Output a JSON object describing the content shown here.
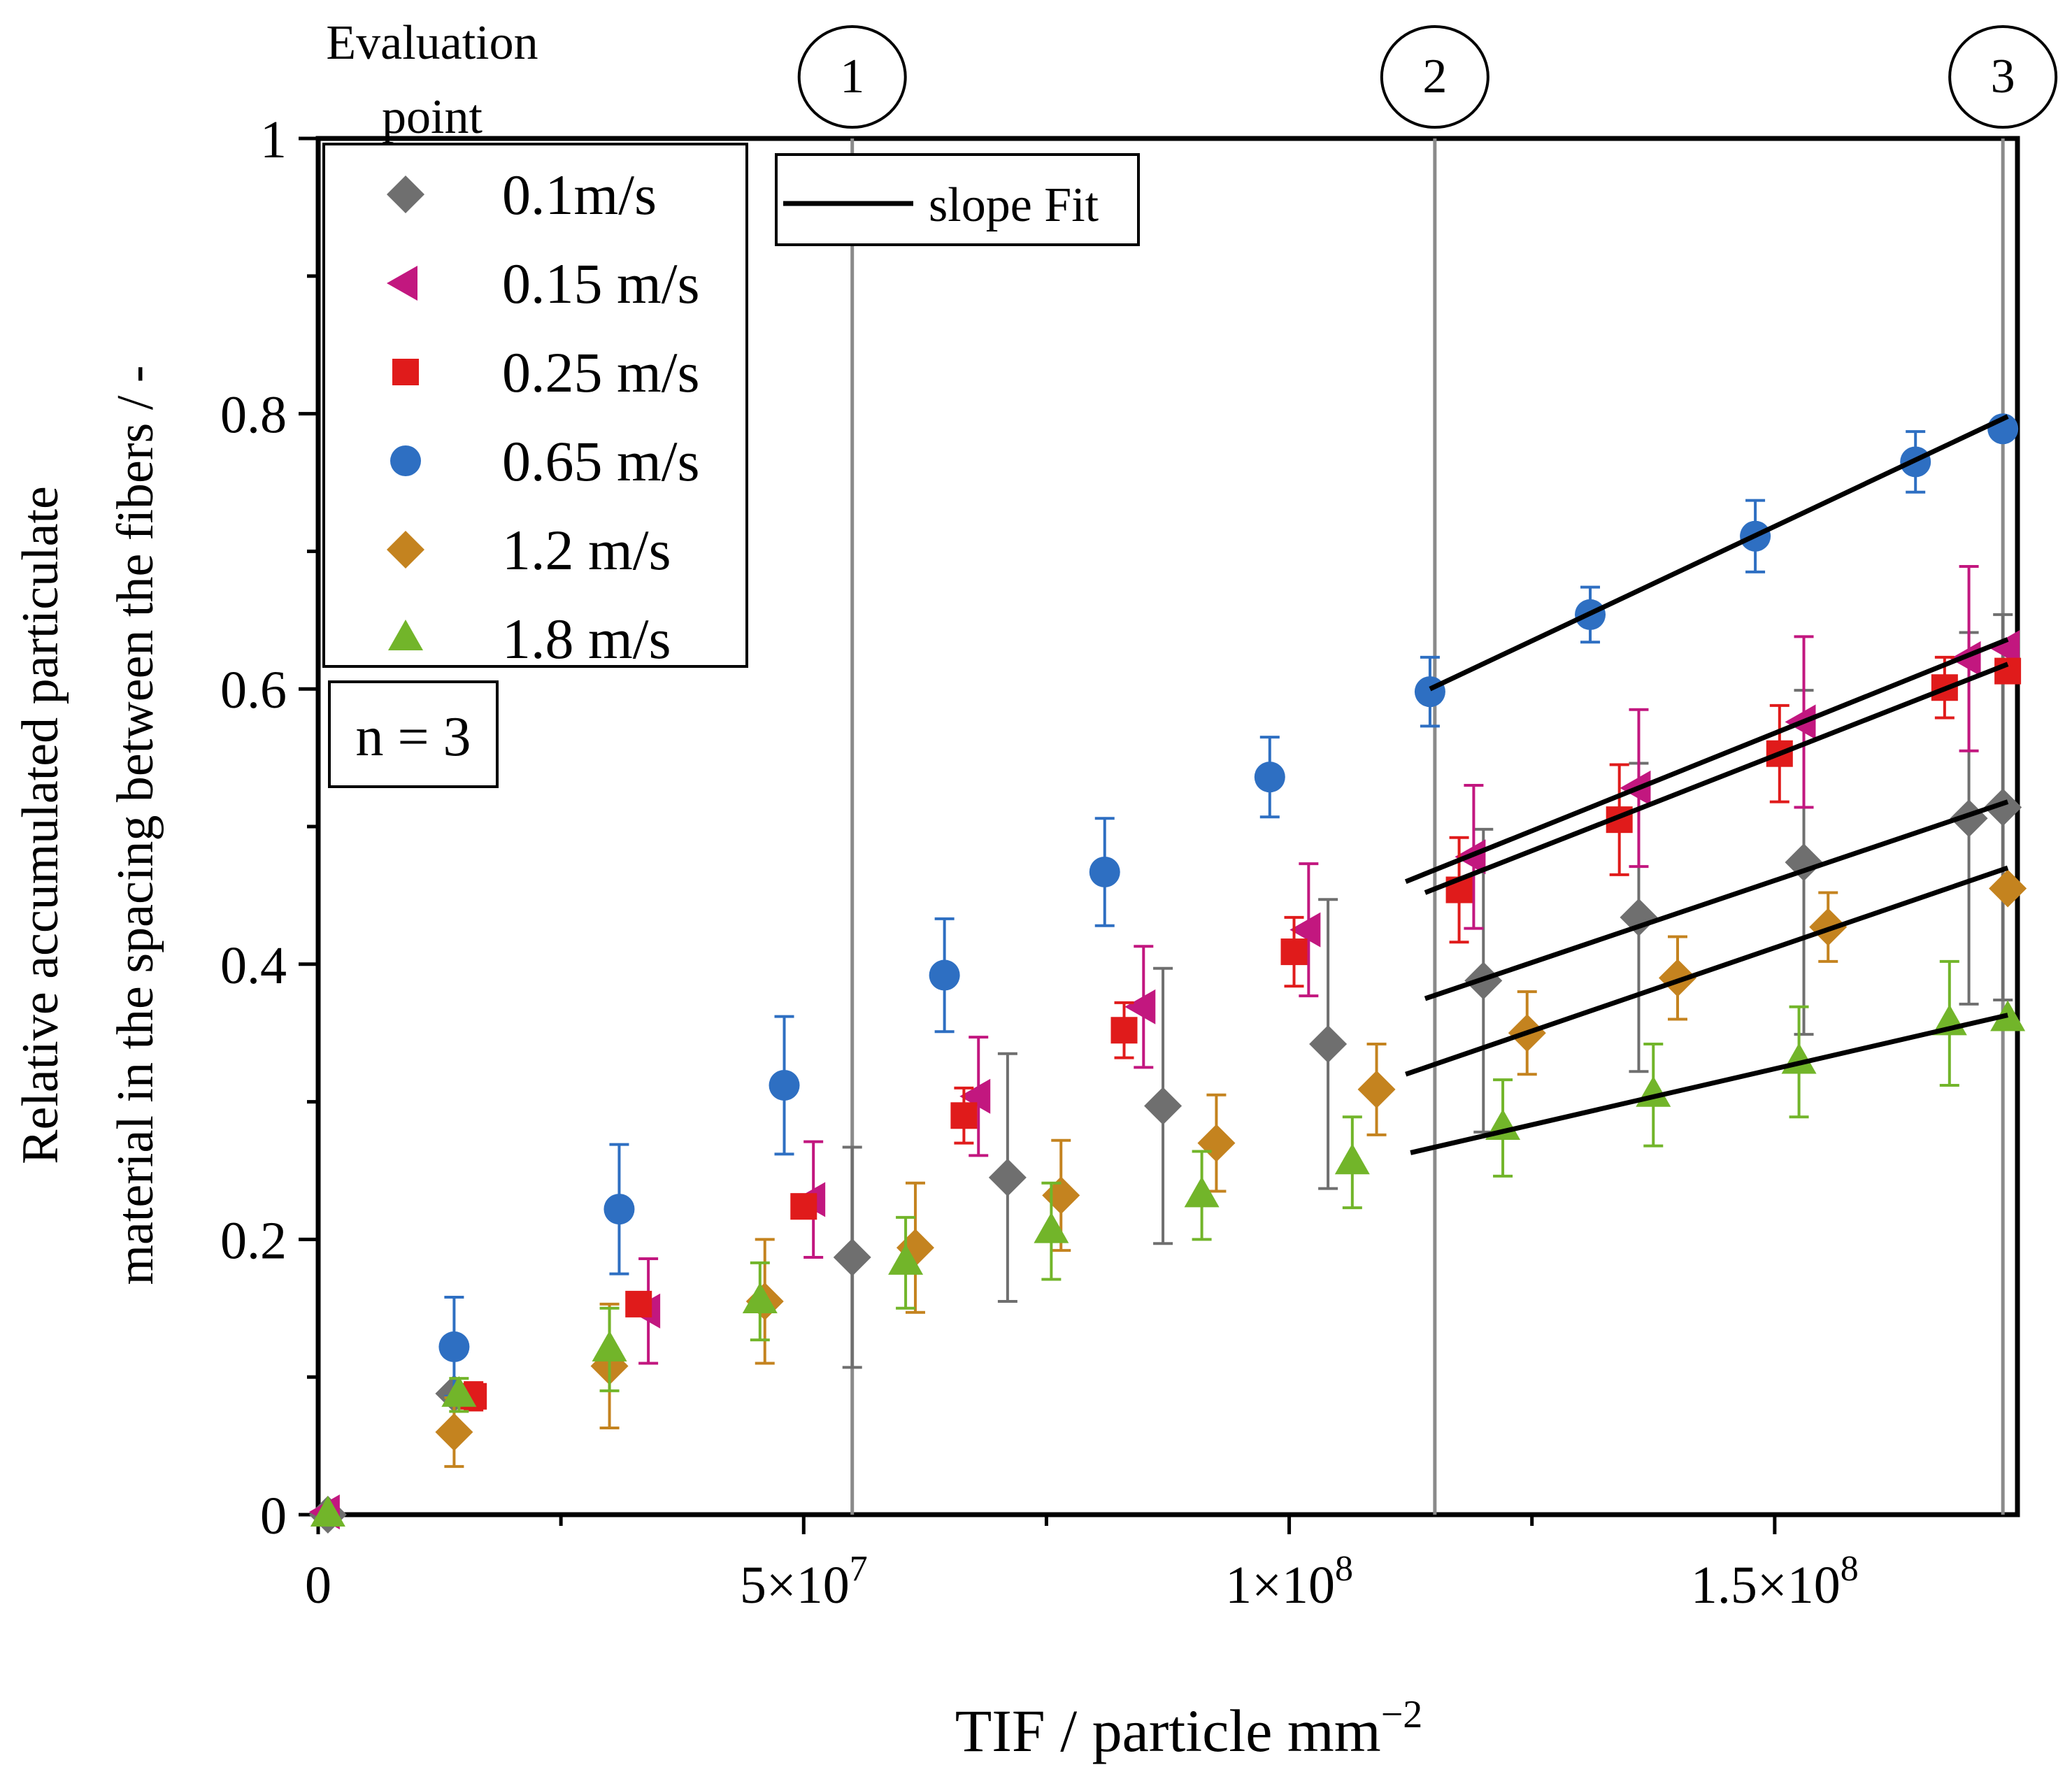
{
  "chart_data": {
    "type": "scatter",
    "xlabel": "TIF / particle  mm",
    "xlabel_exponent": "−2",
    "ylabel_line1": "Relative accumulated particulate",
    "ylabel_line2": "material in the spacing between the fibers / -",
    "xlim": [
      0,
      175000000
    ],
    "ylim": [
      0,
      1
    ],
    "x_ticks": [
      {
        "value": 0,
        "label": "0"
      },
      {
        "value": 50000000,
        "label": "5×10",
        "exp": "7"
      },
      {
        "value": 100000000,
        "label": "1×10",
        "exp": "8"
      },
      {
        "value": 150000000,
        "label": "1.5×10",
        "exp": "8"
      }
    ],
    "y_ticks": [
      {
        "value": 0,
        "label": "0"
      },
      {
        "value": 0.2,
        "label": "0.2"
      },
      {
        "value": 0.4,
        "label": "0.4"
      },
      {
        "value": 0.6,
        "label": "0.6"
      },
      {
        "value": 0.8,
        "label": "0.8"
      },
      {
        "value": 1,
        "label": "1"
      }
    ],
    "evaluation_label_line1": "Evaluation",
    "evaluation_label_line2": "point",
    "evaluation_points": [
      {
        "label": "1",
        "x": 55000000
      },
      {
        "label": "2",
        "x": 115000000
      },
      {
        "label": "3",
        "x": 173500000
      }
    ],
    "annotation_n": "n = 3",
    "fit_legend_label": "slope Fit",
    "series": [
      {
        "name": "0.1m/s",
        "marker": "diamond",
        "color": "#6f6f6f",
        "points": [
          {
            "x": 1000000,
            "y": 0.0,
            "err": 0.0
          },
          {
            "x": 14000000,
            "y": 0.088,
            "err": 0.0
          },
          {
            "x": 55000000,
            "y": 0.187,
            "err": 0.08
          },
          {
            "x": 71000000,
            "y": 0.245,
            "err": 0.09
          },
          {
            "x": 87000000,
            "y": 0.297,
            "err": 0.1
          },
          {
            "x": 104000000,
            "y": 0.342,
            "err": 0.105
          },
          {
            "x": 120000000,
            "y": 0.388,
            "err": 0.11
          },
          {
            "x": 136000000,
            "y": 0.434,
            "err": 0.112
          },
          {
            "x": 153000000,
            "y": 0.474,
            "err": 0.125
          },
          {
            "x": 170000000,
            "y": 0.506,
            "err": 0.135
          },
          {
            "x": 173500000,
            "y": 0.514,
            "err": 0.14
          }
        ],
        "fit": {
          "x0": 114000000,
          "y0": 0.375,
          "x1": 174000000,
          "y1": 0.518
        }
      },
      {
        "name": "0.15 m/s",
        "marker": "triangle-left",
        "color": "#c2177f",
        "points": [
          {
            "x": 1000000,
            "y": 0.002,
            "err": 0.0
          },
          {
            "x": 34000000,
            "y": 0.148,
            "err": 0.038
          },
          {
            "x": 51000000,
            "y": 0.229,
            "err": 0.042
          },
          {
            "x": 68000000,
            "y": 0.304,
            "err": 0.043
          },
          {
            "x": 85000000,
            "y": 0.369,
            "err": 0.044
          },
          {
            "x": 102000000,
            "y": 0.425,
            "err": 0.048
          },
          {
            "x": 119000000,
            "y": 0.478,
            "err": 0.052
          },
          {
            "x": 136000000,
            "y": 0.528,
            "err": 0.057
          },
          {
            "x": 153000000,
            "y": 0.576,
            "err": 0.062
          },
          {
            "x": 170000000,
            "y": 0.622,
            "err": 0.067
          },
          {
            "x": 174000000,
            "y": 0.63,
            "err": 0.0
          }
        ],
        "fit": {
          "x0": 112000000,
          "y0": 0.46,
          "x1": 174000000,
          "y1": 0.636
        }
      },
      {
        "name": "0.25 m/s",
        "marker": "square",
        "color": "#e01b1b",
        "points": [
          {
            "x": 16000000,
            "y": 0.086,
            "err": 0.01
          },
          {
            "x": 33000000,
            "y": 0.153,
            "err": 0.0
          },
          {
            "x": 50000000,
            "y": 0.224,
            "err": 0.0
          },
          {
            "x": 66500000,
            "y": 0.29,
            "err": 0.02
          },
          {
            "x": 83000000,
            "y": 0.352,
            "err": 0.02
          },
          {
            "x": 100500000,
            "y": 0.409,
            "err": 0.025
          },
          {
            "x": 117500000,
            "y": 0.454,
            "err": 0.038
          },
          {
            "x": 134000000,
            "y": 0.505,
            "err": 0.04
          },
          {
            "x": 150500000,
            "y": 0.553,
            "err": 0.035
          },
          {
            "x": 167500000,
            "y": 0.601,
            "err": 0.022
          },
          {
            "x": 174000000,
            "y": 0.613,
            "err": 0.0
          }
        ],
        "fit": {
          "x0": 114000000,
          "y0": 0.452,
          "x1": 174000000,
          "y1": 0.618
        }
      },
      {
        "name": "0.65 m/s",
        "marker": "circle",
        "color": "#2e6fc2",
        "points": [
          {
            "x": 14000000,
            "y": 0.122,
            "err": 0.036
          },
          {
            "x": 31000000,
            "y": 0.222,
            "err": 0.047
          },
          {
            "x": 48000000,
            "y": 0.312,
            "err": 0.05
          },
          {
            "x": 64500000,
            "y": 0.392,
            "err": 0.041
          },
          {
            "x": 81000000,
            "y": 0.467,
            "err": 0.039
          },
          {
            "x": 98000000,
            "y": 0.536,
            "err": 0.029
          },
          {
            "x": 114500000,
            "y": 0.598,
            "err": 0.025
          },
          {
            "x": 131000000,
            "y": 0.654,
            "err": 0.02
          },
          {
            "x": 148000000,
            "y": 0.711,
            "err": 0.026
          },
          {
            "x": 164500000,
            "y": 0.765,
            "err": 0.022
          },
          {
            "x": 173500000,
            "y": 0.789,
            "err": 0.0
          }
        ],
        "fit": {
          "x0": 114500000,
          "y0": 0.6,
          "x1": 174000000,
          "y1": 0.798
        }
      },
      {
        "name": "1.2 m/s",
        "marker": "diamond",
        "color": "#c4831f",
        "points": [
          {
            "x": 14000000,
            "y": 0.06,
            "err": 0.025
          },
          {
            "x": 30000000,
            "y": 0.108,
            "err": 0.045
          },
          {
            "x": 46000000,
            "y": 0.155,
            "err": 0.045
          },
          {
            "x": 61500000,
            "y": 0.194,
            "err": 0.047
          },
          {
            "x": 76500000,
            "y": 0.232,
            "err": 0.04
          },
          {
            "x": 92500000,
            "y": 0.27,
            "err": 0.035
          },
          {
            "x": 109000000,
            "y": 0.309,
            "err": 0.033
          },
          {
            "x": 124500000,
            "y": 0.35,
            "err": 0.03
          },
          {
            "x": 140000000,
            "y": 0.39,
            "err": 0.03
          },
          {
            "x": 155500000,
            "y": 0.427,
            "err": 0.025
          },
          {
            "x": 174000000,
            "y": 0.455,
            "err": 0.0
          }
        ],
        "fit": {
          "x0": 112000000,
          "y0": 0.32,
          "x1": 174000000,
          "y1": 0.47
        }
      },
      {
        "name": "1.8 m/s",
        "marker": "triangle-up",
        "color": "#72b52a",
        "points": [
          {
            "x": 1000000,
            "y": 0.0,
            "err": 0.0
          },
          {
            "x": 14500000,
            "y": 0.087,
            "err": 0.012
          },
          {
            "x": 30000000,
            "y": 0.12,
            "err": 0.03
          },
          {
            "x": 45500000,
            "y": 0.155,
            "err": 0.028
          },
          {
            "x": 60500000,
            "y": 0.183,
            "err": 0.033
          },
          {
            "x": 75500000,
            "y": 0.206,
            "err": 0.035
          },
          {
            "x": 91000000,
            "y": 0.232,
            "err": 0.032
          },
          {
            "x": 106500000,
            "y": 0.256,
            "err": 0.033
          },
          {
            "x": 122000000,
            "y": 0.281,
            "err": 0.035
          },
          {
            "x": 137500000,
            "y": 0.305,
            "err": 0.037
          },
          {
            "x": 152500000,
            "y": 0.329,
            "err": 0.04
          },
          {
            "x": 168000000,
            "y": 0.357,
            "err": 0.045
          },
          {
            "x": 174000000,
            "y": 0.36,
            "err": 0.0
          }
        ],
        "fit": {
          "x0": 112500000,
          "y0": 0.263,
          "x1": 174000000,
          "y1": 0.363
        }
      }
    ]
  }
}
